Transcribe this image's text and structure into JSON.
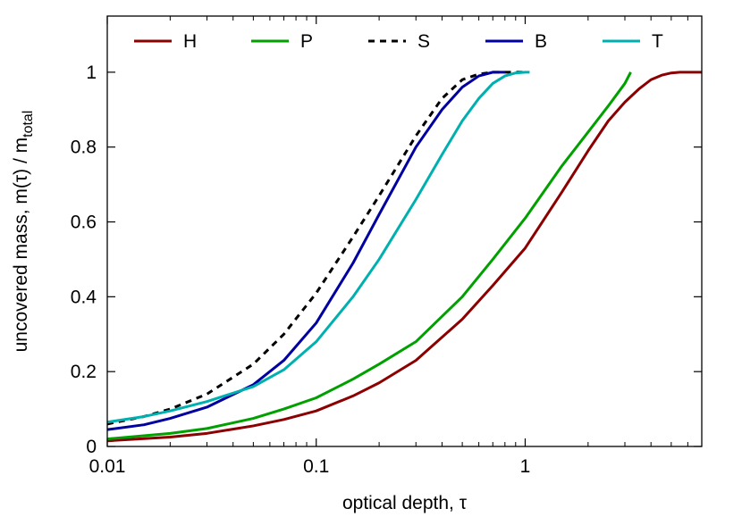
{
  "chart_data": {
    "type": "line",
    "title": "",
    "xlabel": "optical depth, τ",
    "ylabel": "uncovered mass, m(τ) / m",
    "ylabel_sub": "total",
    "x_scale": "log",
    "xlim": [
      0.01,
      7
    ],
    "ylim": [
      0,
      1.15
    ],
    "x_ticks": [
      0.01,
      0.1,
      1
    ],
    "x_tick_labels": [
      "0.01",
      "0.1",
      "1"
    ],
    "y_ticks": [
      0,
      0.2,
      0.4,
      0.6,
      0.8,
      1
    ],
    "y_tick_labels": [
      "0",
      "0.2",
      "0.4",
      "0.6",
      "0.8",
      "1"
    ],
    "legend_position": "top",
    "series": [
      {
        "name": "H",
        "color": "#8b0000",
        "dash": "solid",
        "x": [
          0.01,
          0.02,
          0.03,
          0.05,
          0.07,
          0.1,
          0.15,
          0.2,
          0.3,
          0.5,
          0.7,
          1.0,
          1.5,
          2.0,
          2.5,
          3.0,
          3.5,
          4.0,
          4.5,
          5.0,
          5.5,
          6.0,
          7.0
        ],
        "y": [
          0.015,
          0.025,
          0.035,
          0.055,
          0.072,
          0.095,
          0.135,
          0.17,
          0.23,
          0.34,
          0.43,
          0.53,
          0.68,
          0.79,
          0.87,
          0.92,
          0.955,
          0.98,
          0.992,
          0.998,
          1.0,
          1.0,
          1.0
        ]
      },
      {
        "name": "P",
        "color": "#00a000",
        "dash": "solid",
        "x": [
          0.01,
          0.02,
          0.03,
          0.05,
          0.07,
          0.1,
          0.15,
          0.2,
          0.3,
          0.5,
          0.7,
          1.0,
          1.5,
          2.0,
          2.5,
          3.0,
          3.2
        ],
        "y": [
          0.02,
          0.035,
          0.048,
          0.075,
          0.1,
          0.13,
          0.18,
          0.22,
          0.28,
          0.4,
          0.5,
          0.61,
          0.75,
          0.84,
          0.91,
          0.97,
          1.0
        ]
      },
      {
        "name": "S",
        "color": "#000000",
        "dash": "dashed",
        "x": [
          0.01,
          0.015,
          0.02,
          0.03,
          0.05,
          0.07,
          0.1,
          0.15,
          0.2,
          0.3,
          0.4,
          0.5,
          0.6,
          0.7,
          0.75,
          0.8,
          0.9,
          1.0
        ],
        "y": [
          0.06,
          0.08,
          0.1,
          0.14,
          0.22,
          0.3,
          0.41,
          0.56,
          0.67,
          0.83,
          0.93,
          0.98,
          0.995,
          1.0,
          1.0,
          1.0,
          1.0,
          1.0
        ]
      },
      {
        "name": "B",
        "color": "#0000a0",
        "dash": "solid",
        "x": [
          0.01,
          0.015,
          0.02,
          0.03,
          0.05,
          0.07,
          0.1,
          0.15,
          0.2,
          0.3,
          0.4,
          0.5,
          0.6,
          0.7,
          0.8
        ],
        "y": [
          0.045,
          0.058,
          0.075,
          0.105,
          0.165,
          0.23,
          0.33,
          0.49,
          0.62,
          0.8,
          0.9,
          0.96,
          0.99,
          1.0,
          1.0
        ]
      },
      {
        "name": "T",
        "color": "#00b0b0",
        "dash": "solid",
        "x": [
          0.01,
          0.015,
          0.02,
          0.03,
          0.05,
          0.07,
          0.1,
          0.15,
          0.2,
          0.3,
          0.4,
          0.5,
          0.6,
          0.7,
          0.8,
          0.9,
          1.0,
          1.05
        ],
        "y": [
          0.065,
          0.08,
          0.095,
          0.12,
          0.16,
          0.205,
          0.28,
          0.4,
          0.5,
          0.66,
          0.78,
          0.87,
          0.93,
          0.97,
          0.99,
          0.998,
          1.0,
          1.0
        ]
      }
    ]
  }
}
